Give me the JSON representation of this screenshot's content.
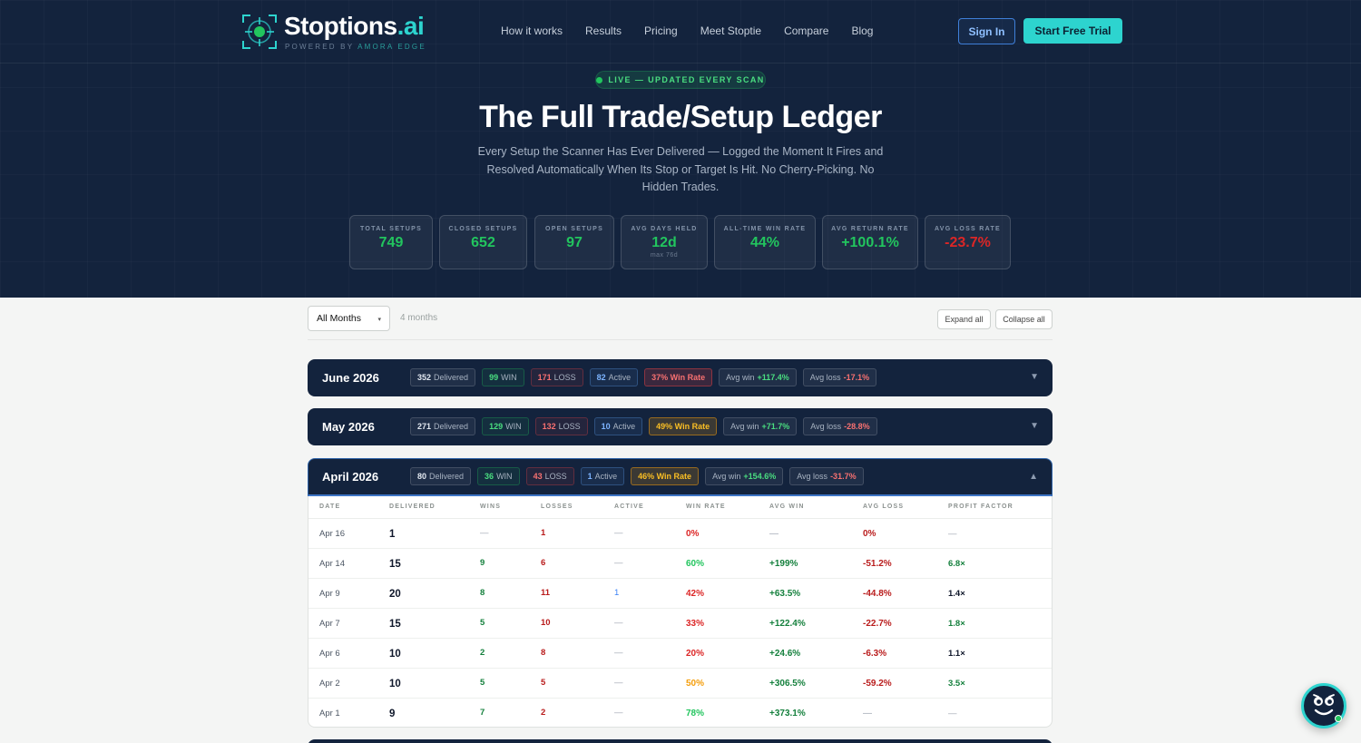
{
  "brand": {
    "name": "Stoptions",
    "suffix": ".ai",
    "tagline_prefix": "POWERED BY",
    "tagline_highlight": "AMORA EDGE",
    "accent": "#2dd4cf"
  },
  "nav": {
    "links": [
      "How it works",
      "Results",
      "Pricing",
      "Meet Stoptie",
      "Compare",
      "Blog"
    ],
    "sign_in": "Sign In",
    "trial": "Start Free Trial"
  },
  "hero": {
    "live_label": "LIVE — UPDATED EVERY SCAN",
    "title": "The Full Trade/Setup Ledger",
    "subtitle": "Every Setup the Scanner Has Ever Delivered — Logged the Moment It Fires and Resolved Automatically When Its Stop or Target Is Hit. No Cherry-Picking. No Hidden Trades."
  },
  "stats": [
    {
      "label": "TOTAL SETUPS",
      "value": "749"
    },
    {
      "label": "CLOSED SETUPS",
      "value": "652"
    },
    {
      "label": "OPEN SETUPS",
      "value": "97"
    },
    {
      "label": "AVG DAYS HELD",
      "value": "12d",
      "note": "max 76d"
    },
    {
      "label": "ALL-TIME WIN RATE",
      "value": "44%"
    },
    {
      "label": "AVG RETURN RATE",
      "value": "+100.1%"
    },
    {
      "label": "AVG LOSS RATE",
      "value": "-23.7%"
    }
  ],
  "toolbar": {
    "month_filter": "All Months",
    "months_count": "4 months",
    "expand_all": "Expand all",
    "collapse_all": "Collapse all"
  },
  "months": [
    {
      "name": "June 2026",
      "delivered": "352",
      "delivered_label": "Delivered",
      "wins": "99",
      "wins_label": "WIN",
      "losses": "171",
      "losses_label": "LOSS",
      "active": "82",
      "active_label": "Active",
      "win_rate": "37% Win Rate",
      "avg_win_label": "Avg win",
      "avg_win": "+117.4%",
      "avg_loss_label": "Avg loss",
      "avg_loss": "-17.1%",
      "expanded": false
    },
    {
      "name": "May 2026",
      "delivered": "271",
      "delivered_label": "Delivered",
      "wins": "129",
      "wins_label": "WIN",
      "losses": "132",
      "losses_label": "LOSS",
      "active": "10",
      "active_label": "Active",
      "win_rate": "49% Win Rate",
      "avg_win_label": "Avg win",
      "avg_win": "+71.7%",
      "avg_loss_label": "Avg loss",
      "avg_loss": "-28.8%",
      "expanded": false
    },
    {
      "name": "April 2026",
      "delivered": "80",
      "delivered_label": "Delivered",
      "wins": "36",
      "wins_label": "WIN",
      "losses": "43",
      "losses_label": "LOSS",
      "active": "1",
      "active_label": "Active",
      "win_rate": "46% Win Rate",
      "avg_win_label": "Avg win",
      "avg_win": "+154.6%",
      "avg_loss_label": "Avg loss",
      "avg_loss": "-31.7%",
      "expanded": true
    }
  ],
  "table": {
    "headers": [
      "DATE",
      "DELIVERED",
      "WINS",
      "LOSSES",
      "ACTIVE",
      "WIN RATE",
      "AVG WIN",
      "AVG LOSS",
      "PROFIT FACTOR"
    ],
    "rows": [
      {
        "date": "Apr 16",
        "delivered": "1",
        "wins": "—",
        "losses": "1",
        "active": "—",
        "win_rate": "0%",
        "avg_win": "—",
        "avg_loss": "0%",
        "profit_factor": "—"
      },
      {
        "date": "Apr 14",
        "delivered": "15",
        "wins": "9",
        "losses": "6",
        "active": "—",
        "win_rate": "60%",
        "avg_win": "+199%",
        "avg_loss": "-51.2%",
        "profit_factor": "6.8×"
      },
      {
        "date": "Apr 9",
        "delivered": "20",
        "wins": "8",
        "losses": "11",
        "active": "1",
        "win_rate": "42%",
        "avg_win": "+63.5%",
        "avg_loss": "-44.8%",
        "profit_factor": "1.4×"
      },
      {
        "date": "Apr 7",
        "delivered": "15",
        "wins": "5",
        "losses": "10",
        "active": "—",
        "win_rate": "33%",
        "avg_win": "+122.4%",
        "avg_loss": "-22.7%",
        "profit_factor": "1.8×"
      },
      {
        "date": "Apr 6",
        "delivered": "10",
        "wins": "2",
        "losses": "8",
        "active": "—",
        "win_rate": "20%",
        "avg_win": "+24.6%",
        "avg_loss": "-6.3%",
        "profit_factor": "1.1×"
      },
      {
        "date": "Apr 2",
        "delivered": "10",
        "wins": "5",
        "losses": "5",
        "active": "—",
        "win_rate": "50%",
        "avg_win": "+306.5%",
        "avg_loss": "-59.2%",
        "profit_factor": "3.5×"
      },
      {
        "date": "Apr 1",
        "delivered": "9",
        "wins": "7",
        "losses": "2",
        "active": "—",
        "win_rate": "78%",
        "avg_win": "+373.1%",
        "avg_loss": "—",
        "profit_factor": "—"
      }
    ]
  }
}
